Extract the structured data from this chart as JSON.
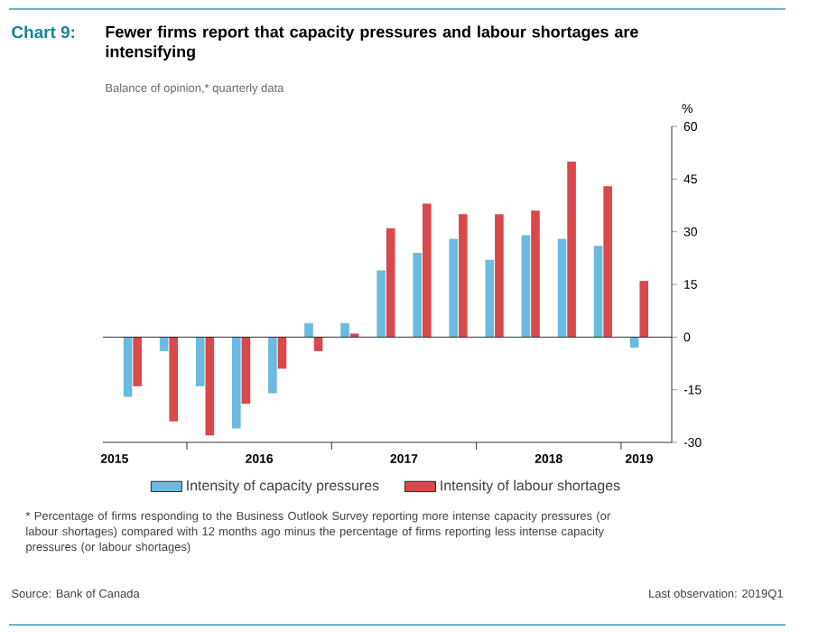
{
  "chart_data": {
    "type": "bar",
    "title": "Fewer firms report that capacity pressures and labour shortages are intensifying",
    "subtitle": "Balance of opinion,* quarterly data",
    "ylabel": "%",
    "annotations": [
      "Chart 9:",
      "* Percentage of firms responding to the Business Outlook Survey reporting more intense capacity pressures (or labour shortages) compared with 12 months ago minus the percentage of firms reporting less intense capacity pressures (or labour shortages)",
      "Source: Bank of Canada",
      "Last observation: 2019Q1"
    ],
    "x": [
      2015.625,
      2015.875,
      2016.125,
      2016.375,
      2016.625,
      2016.875,
      2017.125,
      2017.375,
      2017.625,
      2017.875,
      2018.125,
      2018.375,
      2018.625,
      2018.875,
      2019.125
    ],
    "series": [
      {
        "name": "Intensity of capacity pressures",
        "color": "#6bbbe0",
        "values": [
          -17,
          -4,
          -14,
          -26,
          -16,
          4,
          4,
          19,
          24,
          28,
          22,
          29,
          28,
          26,
          -3
        ]
      },
      {
        "name": "Intensity of labour shortages",
        "color": "#d9484b",
        "values": [
          -14,
          -24,
          -28,
          -19,
          -9,
          -4,
          1,
          31,
          38,
          35,
          35,
          36,
          50,
          43,
          16
        ]
      }
    ],
    "xlim": [
      2015.42,
      2019.35
    ],
    "xticks": [
      {
        "value": 2015.5,
        "label": "2015"
      },
      {
        "value": 2016,
        "label": null
      },
      {
        "value": 2016.5,
        "label": "2016"
      },
      {
        "value": 2017,
        "label": null
      },
      {
        "value": 2017.5,
        "label": "2017"
      },
      {
        "value": 2018,
        "label": null
      },
      {
        "value": 2018.5,
        "label": "2018"
      },
      {
        "value": 2019,
        "label": null
      },
      {
        "value": 2019.125,
        "label": "2019"
      }
    ],
    "ylim": [
      -30,
      60
    ],
    "yticks": [
      -30,
      -15,
      0,
      15,
      30,
      45,
      60
    ],
    "ref_lines": [
      {
        "axis": "y",
        "value": 0
      }
    ],
    "legend": "bottom"
  }
}
